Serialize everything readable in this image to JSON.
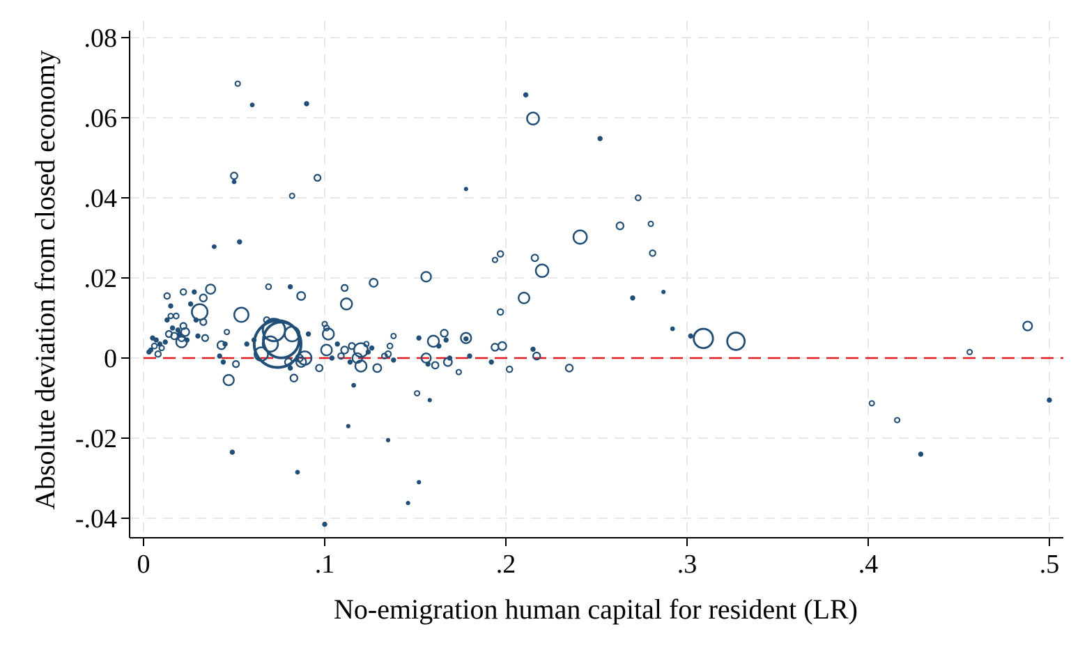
{
  "chart_data": {
    "type": "scatter",
    "title": "",
    "xlabel": "No-emigration human capital for resident (LR)",
    "ylabel": "Absolute deviation from closed economy",
    "xlim": [
      -0.008,
      0.508
    ],
    "ylim": [
      -0.045,
      0.083
    ],
    "x_ticks": [
      0,
      0.1,
      0.2,
      0.3,
      0.4,
      0.5
    ],
    "x_tick_labels": [
      "0",
      ".1",
      ".2",
      ".3",
      ".4",
      ".5"
    ],
    "y_ticks": [
      -0.04,
      -0.02,
      0,
      0.02,
      0.04,
      0.06,
      0.08
    ],
    "y_tick_labels": [
      "-.04",
      "-.02",
      "0",
      ".02",
      ".04",
      ".06",
      ".08"
    ],
    "grid": true,
    "legend": "none",
    "reference_line": {
      "y": 0,
      "style": "dashed",
      "color": "#e31a1c"
    },
    "marker_color": "#1f4e79",
    "marker": "hollow circle, size weighted",
    "points": [
      {
        "x": 0.003,
        "y": 0.0015,
        "w": 1
      },
      {
        "x": 0.004,
        "y": 0.002,
        "w": 1
      },
      {
        "x": 0.005,
        "y": 0.005,
        "w": 1
      },
      {
        "x": 0.006,
        "y": 0.003,
        "w": 1.2
      },
      {
        "x": 0.007,
        "y": 0.0045,
        "w": 1
      },
      {
        "x": 0.008,
        "y": 0.001,
        "w": 1.3
      },
      {
        "x": 0.009,
        "y": 0.0035,
        "w": 1
      },
      {
        "x": 0.01,
        "y": 0.0025,
        "w": 1.1
      },
      {
        "x": 0.012,
        "y": 0.004,
        "w": 1
      },
      {
        "x": 0.013,
        "y": 0.0095,
        "w": 1
      },
      {
        "x": 0.013,
        "y": 0.0155,
        "w": 1.3
      },
      {
        "x": 0.014,
        "y": 0.006,
        "w": 1.4
      },
      {
        "x": 0.015,
        "y": 0.0105,
        "w": 1.1
      },
      {
        "x": 0.015,
        "y": 0.013,
        "w": 1
      },
      {
        "x": 0.016,
        "y": 0.0075,
        "w": 1
      },
      {
        "x": 0.017,
        "y": 0.0055,
        "w": 1.5
      },
      {
        "x": 0.018,
        "y": 0.0105,
        "w": 1.2
      },
      {
        "x": 0.019,
        "y": 0.007,
        "w": 1
      },
      {
        "x": 0.02,
        "y": 0.006,
        "w": 1
      },
      {
        "x": 0.021,
        "y": 0.004,
        "w": 2.4
      },
      {
        "x": 0.021,
        "y": 0.005,
        "w": 1.5
      },
      {
        "x": 0.022,
        "y": 0.0165,
        "w": 1.3
      },
      {
        "x": 0.022,
        "y": 0.008,
        "w": 1.4
      },
      {
        "x": 0.023,
        "y": 0.0065,
        "w": 1.8
      },
      {
        "x": 0.024,
        "y": 0.0045,
        "w": 1
      },
      {
        "x": 0.026,
        "y": 0.0135,
        "w": 1
      },
      {
        "x": 0.028,
        "y": 0.0165,
        "w": 1
      },
      {
        "x": 0.029,
        "y": 0.0095,
        "w": 1
      },
      {
        "x": 0.03,
        "y": 0.0055,
        "w": 1
      },
      {
        "x": 0.031,
        "y": 0.0115,
        "w": 3.5
      },
      {
        "x": 0.033,
        "y": 0.015,
        "w": 1.6
      },
      {
        "x": 0.033,
        "y": 0.009,
        "w": 1.4
      },
      {
        "x": 0.034,
        "y": 0.005,
        "w": 1.4
      },
      {
        "x": 0.037,
        "y": 0.0172,
        "w": 2.1
      },
      {
        "x": 0.039,
        "y": 0.0278,
        "w": 0.9
      },
      {
        "x": 0.042,
        "y": 0.0005,
        "w": 1
      },
      {
        "x": 0.043,
        "y": 0.0032,
        "w": 1.8
      },
      {
        "x": 0.044,
        "y": -0.001,
        "w": 1
      },
      {
        "x": 0.045,
        "y": 0.0035,
        "w": 1
      },
      {
        "x": 0.046,
        "y": 0.0065,
        "w": 1.1
      },
      {
        "x": 0.047,
        "y": -0.0055,
        "w": 2.3
      },
      {
        "x": 0.049,
        "y": -0.0235,
        "w": 1
      },
      {
        "x": 0.05,
        "y": 0.0455,
        "w": 1.5
      },
      {
        "x": 0.05,
        "y": 0.044,
        "w": 0.9
      },
      {
        "x": 0.051,
        "y": -0.0015,
        "w": 1.4
      },
      {
        "x": 0.052,
        "y": 0.0685,
        "w": 1.1
      },
      {
        "x": 0.053,
        "y": 0.029,
        "w": 1
      },
      {
        "x": 0.054,
        "y": 0.0108,
        "w": 3.2
      },
      {
        "x": 0.057,
        "y": 0.0035,
        "w": 1
      },
      {
        "x": 0.06,
        "y": 0.0632,
        "w": 0.9
      },
      {
        "x": 0.061,
        "y": 0.0045,
        "w": 1
      },
      {
        "x": 0.065,
        "y": 0.001,
        "w": 3
      },
      {
        "x": 0.068,
        "y": 0.0095,
        "w": 1.3
      },
      {
        "x": 0.069,
        "y": 0.0178,
        "w": 1.2
      },
      {
        "x": 0.07,
        "y": 0.0035,
        "w": 3.4
      },
      {
        "x": 0.072,
        "y": 0.007,
        "w": 5
      },
      {
        "x": 0.074,
        "y": 0.0035,
        "w": 10.5
      },
      {
        "x": 0.076,
        "y": 0.0045,
        "w": 8
      },
      {
        "x": 0.08,
        "y": -0.001,
        "w": 1.6
      },
      {
        "x": 0.081,
        "y": 0.0178,
        "w": 1
      },
      {
        "x": 0.081,
        "y": -0.0025,
        "w": 1
      },
      {
        "x": 0.082,
        "y": 0.0405,
        "w": 1.1
      },
      {
        "x": 0.082,
        "y": 0.006,
        "w": 3.3
      },
      {
        "x": 0.083,
        "y": -0.005,
        "w": 1.6
      },
      {
        "x": 0.085,
        "y": -0.0285,
        "w": 0.9
      },
      {
        "x": 0.086,
        "y": 0.0,
        "w": 1.6
      },
      {
        "x": 0.087,
        "y": -0.001,
        "w": 2.2
      },
      {
        "x": 0.087,
        "y": 0.0155,
        "w": 1.8
      },
      {
        "x": 0.089,
        "y": 0.0,
        "w": 3
      },
      {
        "x": 0.09,
        "y": 0.0635,
        "w": 1
      },
      {
        "x": 0.091,
        "y": 0.006,
        "w": 1
      },
      {
        "x": 0.096,
        "y": 0.045,
        "w": 1.4
      },
      {
        "x": 0.097,
        "y": -0.0025,
        "w": 1.5
      },
      {
        "x": 0.1,
        "y": -0.0415,
        "w": 1
      },
      {
        "x": 0.1,
        "y": 0.0085,
        "w": 1.1
      },
      {
        "x": 0.101,
        "y": 0.002,
        "w": 2.4
      },
      {
        "x": 0.101,
        "y": 0.0075,
        "w": 1.2
      },
      {
        "x": 0.102,
        "y": 0.006,
        "w": 2.5
      },
      {
        "x": 0.104,
        "y": 0.0,
        "w": 1
      },
      {
        "x": 0.107,
        "y": 0.0035,
        "w": 1
      },
      {
        "x": 0.109,
        "y": 0.0005,
        "w": 1.3
      },
      {
        "x": 0.111,
        "y": 0.0175,
        "w": 1.4
      },
      {
        "x": 0.111,
        "y": 0.002,
        "w": 1.6
      },
      {
        "x": 0.112,
        "y": 0.0135,
        "w": 2.5
      },
      {
        "x": 0.113,
        "y": -0.017,
        "w": 0.8
      },
      {
        "x": 0.114,
        "y": -0.001,
        "w": 1
      },
      {
        "x": 0.115,
        "y": 0.003,
        "w": 1.4
      },
      {
        "x": 0.116,
        "y": -0.0068,
        "w": 0.9
      },
      {
        "x": 0.118,
        "y": 0.0,
        "w": 2.2
      },
      {
        "x": 0.12,
        "y": 0.002,
        "w": 3.1
      },
      {
        "x": 0.12,
        "y": -0.002,
        "w": 2.5
      },
      {
        "x": 0.123,
        "y": 0.0035,
        "w": 1.1
      },
      {
        "x": 0.124,
        "y": 0.0015,
        "w": 1
      },
      {
        "x": 0.126,
        "y": 0.0025,
        "w": 1
      },
      {
        "x": 0.127,
        "y": 0.0188,
        "w": 1.8
      },
      {
        "x": 0.129,
        "y": -0.0025,
        "w": 1.8
      },
      {
        "x": 0.133,
        "y": 0.0005,
        "w": 1.2
      },
      {
        "x": 0.135,
        "y": 0.001,
        "w": 1.3
      },
      {
        "x": 0.135,
        "y": -0.0205,
        "w": 0.8
      },
      {
        "x": 0.136,
        "y": 0.003,
        "w": 1.2
      },
      {
        "x": 0.138,
        "y": 0.0055,
        "w": 1.1
      },
      {
        "x": 0.138,
        "y": -0.0005,
        "w": 1
      },
      {
        "x": 0.146,
        "y": -0.0362,
        "w": 0.8
      },
      {
        "x": 0.151,
        "y": -0.0088,
        "w": 1.1
      },
      {
        "x": 0.152,
        "y": -0.031,
        "w": 0.8
      },
      {
        "x": 0.152,
        "y": 0.005,
        "w": 1
      },
      {
        "x": 0.156,
        "y": 0.0203,
        "w": 2.2
      },
      {
        "x": 0.156,
        "y": 0.0,
        "w": 2.1
      },
      {
        "x": 0.157,
        "y": -0.0015,
        "w": 1
      },
      {
        "x": 0.158,
        "y": -0.0105,
        "w": 0.8
      },
      {
        "x": 0.16,
        "y": 0.0042,
        "w": 2.5
      },
      {
        "x": 0.161,
        "y": -0.0018,
        "w": 1.5
      },
      {
        "x": 0.163,
        "y": 0.003,
        "w": 1
      },
      {
        "x": 0.166,
        "y": 0.0062,
        "w": 1.6
      },
      {
        "x": 0.167,
        "y": 0.0045,
        "w": 1
      },
      {
        "x": 0.168,
        "y": -0.001,
        "w": 1.8
      },
      {
        "x": 0.169,
        "y": 0.0,
        "w": 1
      },
      {
        "x": 0.174,
        "y": -0.0035,
        "w": 1.1
      },
      {
        "x": 0.178,
        "y": 0.005,
        "w": 2.3
      },
      {
        "x": 0.178,
        "y": 0.0048,
        "w": 1
      },
      {
        "x": 0.178,
        "y": 0.0422,
        "w": 0.8
      },
      {
        "x": 0.18,
        "y": 0.0005,
        "w": 1
      },
      {
        "x": 0.192,
        "y": -0.001,
        "w": 1
      },
      {
        "x": 0.194,
        "y": 0.0245,
        "w": 1.1
      },
      {
        "x": 0.194,
        "y": 0.0027,
        "w": 1.6
      },
      {
        "x": 0.197,
        "y": 0.026,
        "w": 1.3
      },
      {
        "x": 0.197,
        "y": 0.0115,
        "w": 1.3
      },
      {
        "x": 0.198,
        "y": 0.003,
        "w": 1.8
      },
      {
        "x": 0.202,
        "y": -0.0028,
        "w": 1.3
      },
      {
        "x": 0.21,
        "y": 0.015,
        "w": 2.4
      },
      {
        "x": 0.211,
        "y": 0.0657,
        "w": 1
      },
      {
        "x": 0.215,
        "y": 0.0022,
        "w": 1
      },
      {
        "x": 0.215,
        "y": 0.0598,
        "w": 2.7
      },
      {
        "x": 0.216,
        "y": 0.025,
        "w": 1.5
      },
      {
        "x": 0.217,
        "y": 0.0005,
        "w": 1.6
      },
      {
        "x": 0.22,
        "y": 0.0218,
        "w": 2.8
      },
      {
        "x": 0.235,
        "y": -0.0025,
        "w": 1.6
      },
      {
        "x": 0.241,
        "y": 0.0302,
        "w": 3
      },
      {
        "x": 0.252,
        "y": 0.0548,
        "w": 1
      },
      {
        "x": 0.263,
        "y": 0.033,
        "w": 1.6
      },
      {
        "x": 0.27,
        "y": 0.015,
        "w": 1
      },
      {
        "x": 0.273,
        "y": 0.04,
        "w": 1.2
      },
      {
        "x": 0.28,
        "y": 0.0335,
        "w": 1.1
      },
      {
        "x": 0.281,
        "y": 0.0262,
        "w": 1.3
      },
      {
        "x": 0.287,
        "y": 0.0165,
        "w": 0.8
      },
      {
        "x": 0.292,
        "y": 0.0073,
        "w": 0.9
      },
      {
        "x": 0.302,
        "y": 0.0055,
        "w": 1
      },
      {
        "x": 0.309,
        "y": 0.0049,
        "w": 4.3
      },
      {
        "x": 0.327,
        "y": 0.0042,
        "w": 3.9
      },
      {
        "x": 0.402,
        "y": -0.0113,
        "w": 1.1
      },
      {
        "x": 0.416,
        "y": -0.0155,
        "w": 1.1
      },
      {
        "x": 0.429,
        "y": -0.024,
        "w": 1
      },
      {
        "x": 0.456,
        "y": 0.0015,
        "w": 1.1
      },
      {
        "x": 0.488,
        "y": 0.008,
        "w": 2
      },
      {
        "x": 0.5,
        "y": -0.0105,
        "w": 1
      }
    ]
  }
}
